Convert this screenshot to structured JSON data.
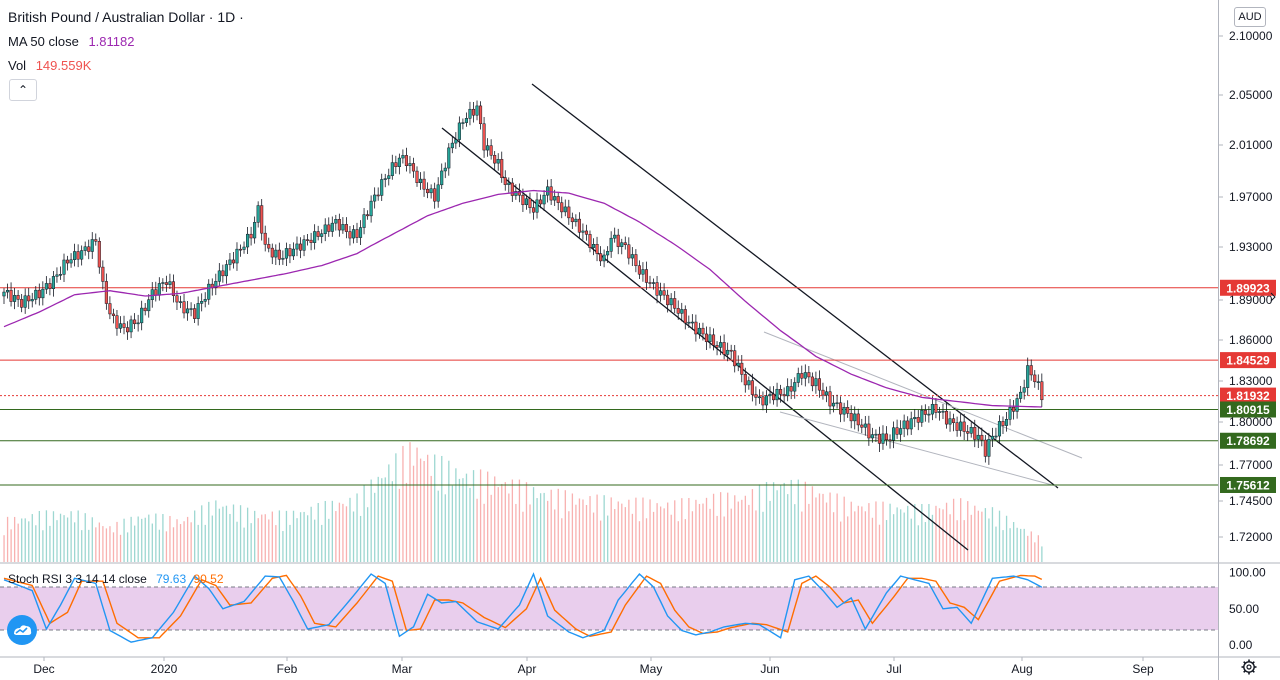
{
  "header": {
    "symbol": "British Pound / Australian Dollar · 1D ·",
    "ma_label": "MA 50 close",
    "ma_value": "1.81182",
    "vol_label": "Vol",
    "vol_value": "149.559K",
    "collapse_glyph": "⌃",
    "currency": "AUD"
  },
  "colors": {
    "up": "#26a69a",
    "down": "#ef5350",
    "ma": "#9c27b0",
    "resistance": "#e53935",
    "support": "#33691e",
    "stoch_k": "#2196f3",
    "stoch_d": "#ff6d00",
    "stoch_band": "#e1bee7"
  },
  "stoch": {
    "label": "Stoch RSI 3 3 14 14 close",
    "k_value": "79.63",
    "d_value": "90.52",
    "ticks": [
      "100.00",
      "50.00",
      "0.00"
    ]
  },
  "chart_data": {
    "type": "candlestick",
    "title": "British Pound / Australian Dollar · 1D",
    "y_ticks": [
      "2.10000",
      "2.05000",
      "2.01000",
      "1.97000",
      "1.93000",
      "1.89000",
      "1.86000",
      "1.83000",
      "1.80000",
      "1.77000",
      "1.74500",
      "1.72000"
    ],
    "x_ticks": [
      "Dec",
      "2020",
      "Feb",
      "Mar",
      "Apr",
      "May",
      "Jun",
      "Jul",
      "Aug",
      "Sep"
    ],
    "horizontal_levels": [
      {
        "label": "1.89923",
        "kind": "resistance"
      },
      {
        "label": "1.84529",
        "kind": "resistance"
      },
      {
        "label": "1.81932",
        "kind": "current"
      },
      {
        "label": "1.80915",
        "kind": "support"
      },
      {
        "label": "1.78692",
        "kind": "support"
      },
      {
        "label": "1.75612",
        "kind": "support"
      }
    ],
    "close_trend": [
      [
        0,
        1.896
      ],
      [
        5,
        1.888
      ],
      [
        10,
        1.895
      ],
      [
        14,
        1.905
      ],
      [
        18,
        1.92
      ],
      [
        22,
        1.926
      ],
      [
        26,
        1.935
      ],
      [
        28,
        1.9
      ],
      [
        30,
        1.88
      ],
      [
        31,
        1.875
      ],
      [
        34,
        1.868
      ],
      [
        38,
        1.875
      ],
      [
        42,
        1.895
      ],
      [
        46,
        1.905
      ],
      [
        50,
        1.885
      ],
      [
        54,
        1.88
      ],
      [
        58,
        1.898
      ],
      [
        62,
        1.912
      ],
      [
        66,
        1.925
      ],
      [
        70,
        1.94
      ],
      [
        72,
        1.96
      ],
      [
        74,
        1.93
      ],
      [
        78,
        1.922
      ],
      [
        82,
        1.928
      ],
      [
        86,
        1.935
      ],
      [
        90,
        1.942
      ],
      [
        94,
        1.95
      ],
      [
        98,
        1.94
      ],
      [
        100,
        1.94
      ],
      [
        104,
        1.965
      ],
      [
        108,
        1.985
      ],
      [
        112,
        2.0
      ],
      [
        114,
        1.998
      ],
      [
        118,
        1.98
      ],
      [
        120,
        1.975
      ],
      [
        122,
        1.97
      ],
      [
        126,
        2.005
      ],
      [
        130,
        2.03
      ],
      [
        134,
        2.04
      ],
      [
        136,
        2.01
      ],
      [
        140,
        1.995
      ],
      [
        142,
        1.98
      ],
      [
        146,
        1.97
      ],
      [
        150,
        1.96
      ],
      [
        154,
        1.975
      ],
      [
        156,
        1.968
      ],
      [
        160,
        1.955
      ],
      [
        164,
        1.942
      ],
      [
        168,
        1.925
      ],
      [
        170,
        1.92
      ],
      [
        172,
        1.938
      ],
      [
        176,
        1.93
      ],
      [
        180,
        1.912
      ],
      [
        184,
        1.9
      ],
      [
        188,
        1.89
      ],
      [
        190,
        1.885
      ],
      [
        194,
        1.873
      ],
      [
        198,
        1.864
      ],
      [
        202,
        1.856
      ],
      [
        206,
        1.85
      ],
      [
        210,
        1.83
      ],
      [
        214,
        1.815
      ],
      [
        218,
        1.82
      ],
      [
        222,
        1.822
      ],
      [
        226,
        1.836
      ],
      [
        230,
        1.828
      ],
      [
        234,
        1.815
      ],
      [
        238,
        1.808
      ],
      [
        242,
        1.8
      ],
      [
        246,
        1.79
      ],
      [
        250,
        1.788
      ],
      [
        254,
        1.796
      ],
      [
        258,
        1.802
      ],
      [
        262,
        1.808
      ],
      [
        264,
        1.81
      ],
      [
        268,
        1.8
      ],
      [
        272,
        1.795
      ],
      [
        276,
        1.79
      ],
      [
        278,
        1.78
      ],
      [
        280,
        1.79
      ],
      [
        284,
        1.803
      ],
      [
        288,
        1.82
      ],
      [
        290,
        1.838
      ],
      [
        292,
        1.832
      ],
      [
        294,
        1.819
      ]
    ],
    "ma50_trend": [
      [
        0,
        1.87
      ],
      [
        10,
        1.881
      ],
      [
        20,
        1.894
      ],
      [
        30,
        1.897
      ],
      [
        40,
        1.893
      ],
      [
        50,
        1.895
      ],
      [
        60,
        1.9
      ],
      [
        70,
        1.905
      ],
      [
        80,
        1.91
      ],
      [
        90,
        1.916
      ],
      [
        100,
        1.925
      ],
      [
        110,
        1.94
      ],
      [
        120,
        1.955
      ],
      [
        130,
        1.965
      ],
      [
        140,
        1.972
      ],
      [
        150,
        1.975
      ],
      [
        160,
        1.973
      ],
      [
        170,
        1.965
      ],
      [
        180,
        1.95
      ],
      [
        190,
        1.932
      ],
      [
        200,
        1.913
      ],
      [
        210,
        1.889
      ],
      [
        220,
        1.867
      ],
      [
        230,
        1.848
      ],
      [
        240,
        1.835
      ],
      [
        250,
        1.825
      ],
      [
        260,
        1.818
      ],
      [
        270,
        1.815
      ],
      [
        280,
        1.812
      ],
      [
        294,
        1.811
      ]
    ],
    "stoch_k_trend": [
      [
        0,
        90
      ],
      [
        8,
        75
      ],
      [
        12,
        22
      ],
      [
        16,
        55
      ],
      [
        20,
        92
      ],
      [
        26,
        85
      ],
      [
        30,
        20
      ],
      [
        36,
        4
      ],
      [
        42,
        10
      ],
      [
        48,
        45
      ],
      [
        54,
        95
      ],
      [
        58,
        78
      ],
      [
        62,
        50
      ],
      [
        68,
        60
      ],
      [
        74,
        95
      ],
      [
        78,
        94
      ],
      [
        82,
        60
      ],
      [
        86,
        22
      ],
      [
        92,
        28
      ],
      [
        98,
        62
      ],
      [
        104,
        98
      ],
      [
        108,
        85
      ],
      [
        112,
        12
      ],
      [
        116,
        25
      ],
      [
        120,
        70
      ],
      [
        124,
        58
      ],
      [
        128,
        60
      ],
      [
        134,
        32
      ],
      [
        140,
        22
      ],
      [
        146,
        55
      ],
      [
        150,
        98
      ],
      [
        154,
        40
      ],
      [
        160,
        18
      ],
      [
        164,
        10
      ],
      [
        170,
        20
      ],
      [
        174,
        62
      ],
      [
        180,
        98
      ],
      [
        184,
        80
      ],
      [
        188,
        40
      ],
      [
        192,
        20
      ],
      [
        196,
        14
      ],
      [
        200,
        18
      ],
      [
        204,
        25
      ],
      [
        210,
        30
      ],
      [
        214,
        28
      ],
      [
        220,
        10
      ],
      [
        224,
        90
      ],
      [
        228,
        95
      ],
      [
        232,
        75
      ],
      [
        236,
        52
      ],
      [
        240,
        65
      ],
      [
        244,
        22
      ],
      [
        250,
        72
      ],
      [
        254,
        95
      ],
      [
        258,
        90
      ],
      [
        262,
        85
      ],
      [
        266,
        50
      ],
      [
        270,
        52
      ],
      [
        274,
        30
      ],
      [
        280,
        92
      ],
      [
        286,
        95
      ],
      [
        290,
        90
      ],
      [
        294,
        79.63
      ]
    ],
    "stoch_d_trend": [
      [
        0,
        92
      ],
      [
        8,
        82
      ],
      [
        13,
        30
      ],
      [
        18,
        45
      ],
      [
        22,
        88
      ],
      [
        28,
        88
      ],
      [
        32,
        30
      ],
      [
        38,
        10
      ],
      [
        44,
        10
      ],
      [
        50,
        40
      ],
      [
        56,
        90
      ],
      [
        60,
        82
      ],
      [
        64,
        55
      ],
      [
        70,
        58
      ],
      [
        76,
        92
      ],
      [
        80,
        96
      ],
      [
        84,
        68
      ],
      [
        88,
        30
      ],
      [
        94,
        25
      ],
      [
        100,
        58
      ],
      [
        106,
        95
      ],
      [
        110,
        88
      ],
      [
        114,
        20
      ],
      [
        118,
        22
      ],
      [
        122,
        62
      ],
      [
        126,
        62
      ],
      [
        130,
        58
      ],
      [
        136,
        38
      ],
      [
        142,
        24
      ],
      [
        148,
        50
      ],
      [
        152,
        92
      ],
      [
        156,
        48
      ],
      [
        162,
        22
      ],
      [
        166,
        12
      ],
      [
        172,
        18
      ],
      [
        176,
        55
      ],
      [
        182,
        95
      ],
      [
        186,
        85
      ],
      [
        190,
        48
      ],
      [
        194,
        25
      ],
      [
        198,
        16
      ],
      [
        202,
        18
      ],
      [
        206,
        24
      ],
      [
        212,
        30
      ],
      [
        216,
        28
      ],
      [
        222,
        18
      ],
      [
        226,
        85
      ],
      [
        230,
        95
      ],
      [
        234,
        80
      ],
      [
        238,
        58
      ],
      [
        242,
        62
      ],
      [
        246,
        30
      ],
      [
        252,
        66
      ],
      [
        256,
        92
      ],
      [
        260,
        92
      ],
      [
        264,
        88
      ],
      [
        268,
        58
      ],
      [
        272,
        52
      ],
      [
        276,
        35
      ],
      [
        282,
        88
      ],
      [
        288,
        96
      ],
      [
        292,
        95
      ],
      [
        294,
        90.52
      ]
    ],
    "volume_trend": [
      [
        0,
        40
      ],
      [
        10,
        46
      ],
      [
        20,
        48
      ],
      [
        30,
        34
      ],
      [
        40,
        46
      ],
      [
        50,
        40
      ],
      [
        60,
        58
      ],
      [
        70,
        48
      ],
      [
        80,
        46
      ],
      [
        90,
        54
      ],
      [
        100,
        62
      ],
      [
        110,
        96
      ],
      [
        116,
        112
      ],
      [
        122,
        98
      ],
      [
        130,
        86
      ],
      [
        140,
        80
      ],
      [
        150,
        70
      ],
      [
        160,
        64
      ],
      [
        170,
        60
      ],
      [
        180,
        58
      ],
      [
        190,
        56
      ],
      [
        200,
        62
      ],
      [
        210,
        64
      ],
      [
        220,
        78
      ],
      [
        230,
        70
      ],
      [
        240,
        56
      ],
      [
        250,
        54
      ],
      [
        260,
        52
      ],
      [
        270,
        58
      ],
      [
        280,
        50
      ],
      [
        294,
        22
      ]
    ],
    "volume_ylim": [
      0,
      140
    ]
  }
}
